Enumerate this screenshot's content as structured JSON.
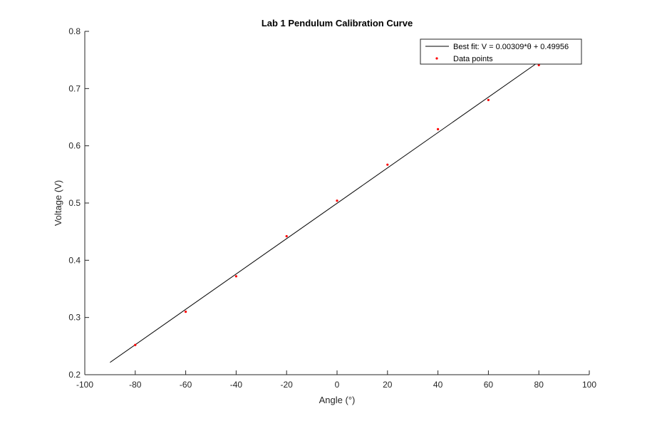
{
  "chart_data": {
    "type": "scatter",
    "title": "Lab 1 Pendulum Calibration Curve",
    "xlabel": "Angle (°)",
    "ylabel": "Voltage (V)",
    "xlim": [
      -100,
      100
    ],
    "ylim": [
      0.2,
      0.8
    ],
    "xticks": [
      -100,
      -80,
      -60,
      -40,
      -20,
      0,
      20,
      40,
      60,
      80,
      100
    ],
    "yticks": [
      0.2,
      0.3,
      0.4,
      0.5,
      0.6,
      0.7,
      0.8
    ],
    "xtick_labels": [
      "-100",
      "-80",
      "-60",
      "-40",
      "-20",
      "0",
      "20",
      "40",
      "60",
      "80",
      "100"
    ],
    "ytick_labels": [
      "0.2",
      "0.3",
      "0.4",
      "0.5",
      "0.6",
      "0.7",
      "0.8"
    ],
    "grid": false,
    "legend_position": "top-right",
    "series": [
      {
        "name": "Best fit: V = 0.00309*θ + 0.49956",
        "kind": "line",
        "color": "#000000",
        "x": [
          -90,
          80
        ],
        "y": [
          0.22146,
          0.74676
        ]
      },
      {
        "name": "Data points",
        "kind": "points",
        "color": "#ff0000",
        "x": [
          -80,
          -60,
          -40,
          -20,
          0,
          20,
          40,
          60,
          80
        ],
        "y": [
          0.252,
          0.31,
          0.372,
          0.442,
          0.504,
          0.567,
          0.629,
          0.68,
          0.741
        ]
      }
    ]
  }
}
